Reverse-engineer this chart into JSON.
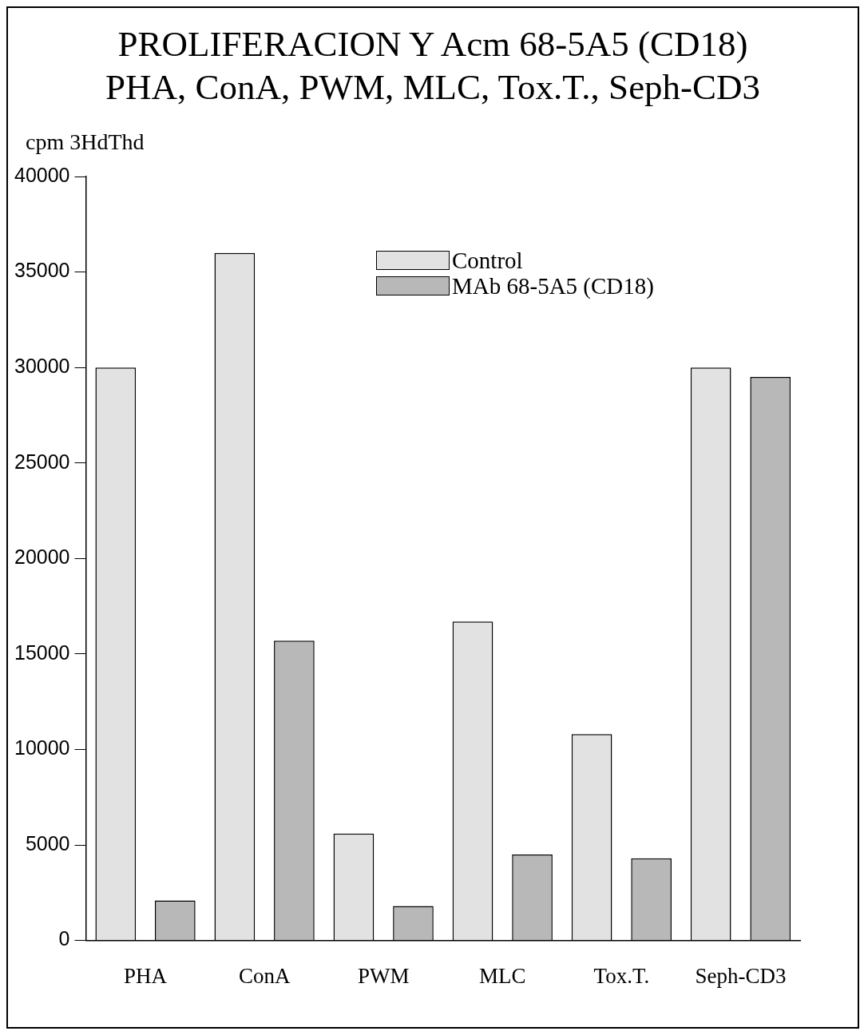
{
  "chart_data": {
    "type": "bar",
    "title": "PROLIFERACION Y Acm 68-5A5 (CD18)",
    "subtitle": "PHA, ConA, PWM, MLC, Tox.T., Seph-CD3",
    "ylabel": "cpm 3HdThd",
    "categories": [
      "PHA",
      "ConA",
      "PWM",
      "MLC",
      "Tox.T.",
      "Seph-CD3"
    ],
    "series": [
      {
        "name": "Control",
        "color": "#e2e2e2",
        "values": [
          30000,
          36000,
          5600,
          16700,
          10800,
          30000
        ]
      },
      {
        "name": "MAb 68-5A5 (CD18)",
        "color": "#b8b8b8",
        "values": [
          2100,
          15700,
          1800,
          4500,
          4300,
          29500
        ]
      }
    ],
    "ylim": [
      0,
      40000
    ],
    "yticks": [
      0,
      5000,
      10000,
      15000,
      20000,
      25000,
      30000,
      35000,
      40000
    ],
    "grid": false,
    "legend": "top right"
  }
}
